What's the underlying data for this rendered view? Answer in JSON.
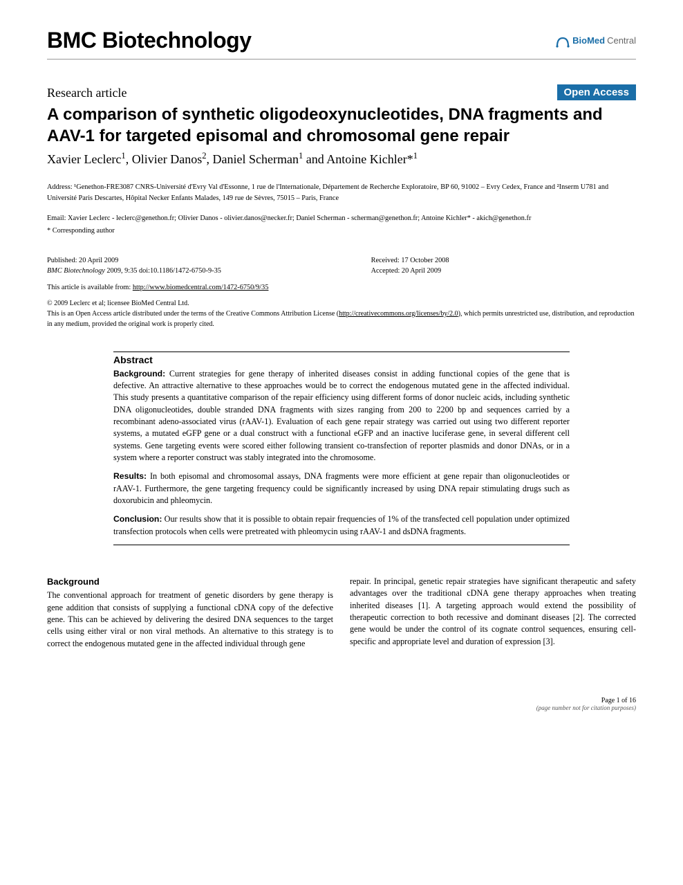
{
  "journal": {
    "name": "BMC Biotechnology",
    "logo_brand": "BioMed",
    "logo_suffix": "Central",
    "logo_color": "#1a6ea8"
  },
  "article_type": "Research article",
  "open_access_badge": "Open Access",
  "title": "A comparison of synthetic oligodeoxynucleotides, DNA fragments and AAV-1 for targeted episomal and chromosomal gene repair",
  "authors_html": "Xavier Leclerc<sup>1</sup>, Olivier Danos<sup>2</sup>, Daniel Scherman<sup>1</sup> and Antoine Kichler*<sup>1</sup>",
  "affiliation": "Address: ¹Genethon-FRE3087 CNRS-Université d'Evry Val d'Essonne, 1 rue de l'Internationale, Département de Recherche Exploratoire, BP 60, 91002 – Evry Cedex, France and ²Inserm U781 and Université Paris Descartes, Hôpital Necker Enfants Malades, 149 rue de Sèvres, 75015 – Paris, France",
  "emails": "Email: Xavier Leclerc - leclerc@genethon.fr; Olivier Danos - olivier.danos@necker.fr; Daniel Scherman - scherman@genethon.fr; Antoine Kichler* - akich@genethon.fr",
  "corresponding": "* Corresponding author",
  "publication": {
    "published_label": "Published: 20 April 2009",
    "citation_journal": "BMC Biotechnology",
    "citation_rest": " 2009, 9:35    doi:10.1186/1472-6750-9-35",
    "received": "Received: 17 October 2008",
    "accepted": "Accepted: 20 April 2009",
    "url_label": "This article is available from: ",
    "url": "http://www.biomedcentral.com/1472-6750/9/35"
  },
  "copyright": {
    "line1": "© 2009 Leclerc et al; licensee BioMed Central Ltd.",
    "line2a": "This is an Open Access article distributed under the terms of the Creative Commons Attribution License (",
    "license_url": "http://creativecommons.org/licenses/by/2.0",
    "line2b": "), which permits unrestricted use, distribution, and reproduction in any medium, provided the original work is properly cited."
  },
  "abstract": {
    "heading": "Abstract",
    "background_label": "Background:",
    "background": " Current strategies for gene therapy of inherited diseases consist in adding functional copies of the gene that is defective. An attractive alternative to these approaches would be to correct the endogenous mutated gene in the affected individual. This study presents a quantitative comparison of the repair efficiency using different forms of donor nucleic acids, including synthetic DNA oligonucleotides, double stranded DNA fragments with sizes ranging from 200 to 2200 bp and sequences carried by a recombinant adeno-associated virus (rAAV-1). Evaluation of each gene repair strategy was carried out using two different reporter systems, a mutated eGFP gene or a dual construct with a functional eGFP and an inactive luciferase gene, in several different cell systems. Gene targeting events were scored either following transient co-transfection of reporter plasmids and donor DNAs, or in a system where a reporter construct was stably integrated into the chromosome.",
    "results_label": "Results:",
    "results": " In both episomal and chromosomal assays, DNA fragments were more efficient at gene repair than oligonucleotides or rAAV-1. Furthermore, the gene targeting frequency could be significantly increased by using DNA repair stimulating drugs such as doxorubicin and phleomycin.",
    "conclusion_label": "Conclusion:",
    "conclusion": " Our results show that it is possible to obtain repair frequencies of 1% of the transfected cell population under optimized transfection protocols when cells were pretreated with phleomycin using rAAV-1 and dsDNA fragments."
  },
  "body": {
    "section_head": "Background",
    "col1": "The conventional approach for treatment of genetic disorders by gene therapy is gene addition that consists of supplying a functional cDNA copy of the defective gene. This can be achieved by delivering the desired DNA sequences to the target cells using either viral or non viral methods. An alternative to this strategy is to correct the endogenous mutated gene in the affected individual through gene",
    "col2": "repair. In principal, genetic repair strategies have significant therapeutic and safety advantages over the traditional cDNA gene therapy approaches when treating inherited diseases [1]. A targeting approach would extend the possibility of therapeutic correction to both recessive and dominant diseases [2]. The corrected gene would be under the control of its cognate control sequences, ensuring cell-specific and appropriate level and duration of expression [3]."
  },
  "footer": {
    "page": "Page 1 of 16",
    "note": "(page number not for citation purposes)"
  },
  "colors": {
    "accent": "#1a6ea8",
    "text": "#000000",
    "muted": "#666666",
    "rule": "#999999",
    "background": "#ffffff"
  },
  "typography": {
    "journal_name_fontsize": 32,
    "title_fontsize": 24,
    "article_type_fontsize": 18,
    "authors_fontsize": 18,
    "body_fontsize": 12.2,
    "small_fontsize": 10.3,
    "abstract_heading_fontsize": 14
  }
}
